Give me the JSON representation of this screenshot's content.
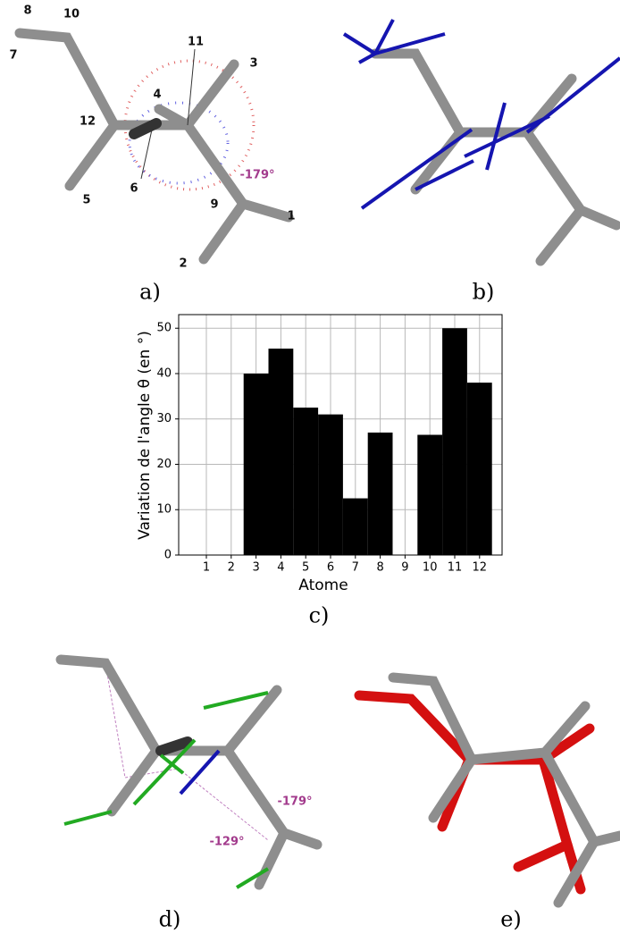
{
  "chart_data": {
    "type": "bar",
    "xlabel": "Atome",
    "ylabel": "Variation de l'angle θ (en °)",
    "categories": [
      "1",
      "2",
      "3",
      "4",
      "5",
      "6",
      "7",
      "8",
      "9",
      "10",
      "11",
      "12"
    ],
    "values": [
      0,
      0,
      40,
      45.5,
      32.5,
      31,
      12.5,
      27,
      0,
      26.5,
      50,
      38
    ],
    "color": "#000000",
    "ylim": [
      0,
      53
    ],
    "yticks": [
      0,
      10,
      20,
      30,
      40,
      50
    ],
    "grid": true
  },
  "panels": {
    "a": {
      "label": "a)",
      "atoms": [
        "8",
        "10",
        "7",
        "11",
        "3",
        "4",
        "12",
        "6",
        "5",
        "9",
        "1",
        "2"
      ],
      "angle": "-179°"
    },
    "b": {
      "label": "b)"
    },
    "c": {
      "label": "c)"
    },
    "d": {
      "label": "d)",
      "angles": [
        "-179°",
        "-129°"
      ]
    },
    "e": {
      "label": "e)"
    }
  }
}
